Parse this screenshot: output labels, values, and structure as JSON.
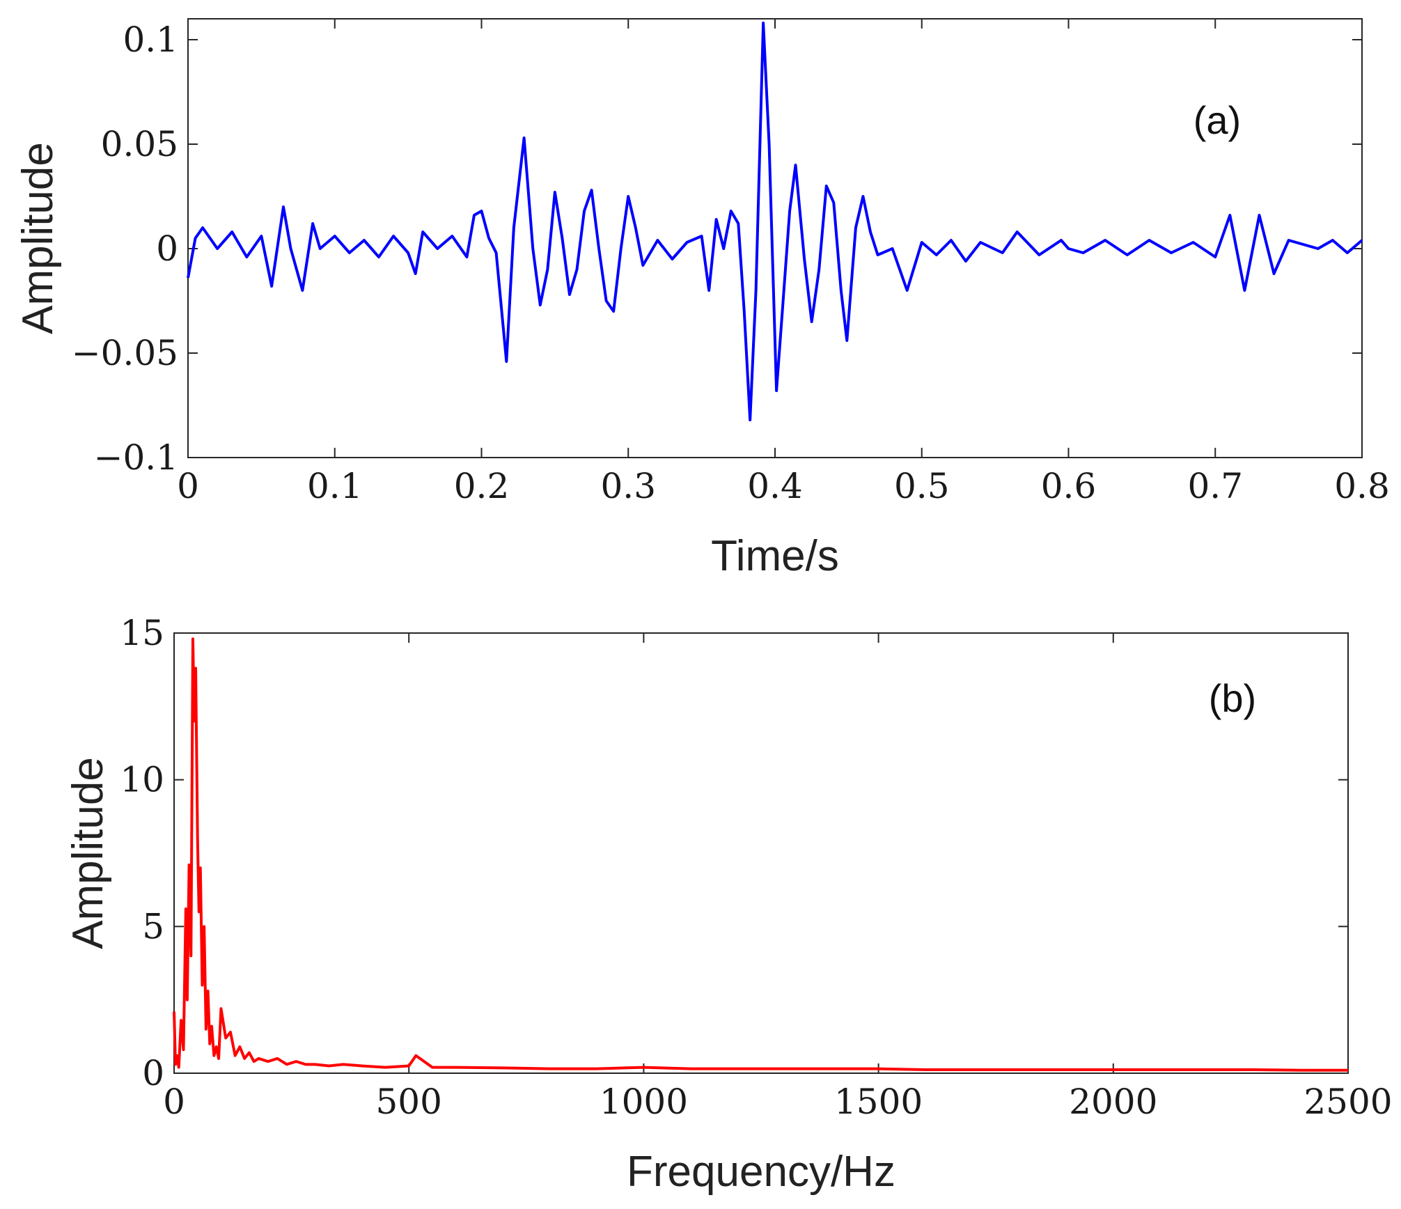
{
  "chart_data": [
    {
      "id": "a",
      "type": "line",
      "panel_label": "(a)",
      "xlabel": "Time/s",
      "ylabel": "Amplitude",
      "xlim": [
        0,
        0.8
      ],
      "ylim": [
        -0.1,
        0.11
      ],
      "xticks": [
        0,
        0.1,
        0.2,
        0.3,
        0.4,
        0.5,
        0.6,
        0.7,
        0.8
      ],
      "xtick_labels": [
        "0",
        "0.1",
        "0.2",
        "0.3",
        "0.4",
        "0.5",
        "0.6",
        "0.7",
        "0.8"
      ],
      "yticks": [
        -0.1,
        -0.05,
        0,
        0.05,
        0.1
      ],
      "ytick_labels": [
        "−0.1",
        "−0.05",
        "0",
        "0.05",
        "0.1"
      ],
      "grid": false,
      "color": "#0000ff",
      "series": [
        {
          "x": [
            0,
            0.005,
            0.01,
            0.02,
            0.03,
            0.04,
            0.05,
            0.057,
            0.065,
            0.07,
            0.078,
            0.085,
            0.09,
            0.1,
            0.11,
            0.12,
            0.13,
            0.14,
            0.15,
            0.155,
            0.16,
            0.17,
            0.18,
            0.19,
            0.195,
            0.2,
            0.205,
            0.21,
            0.217,
            0.222,
            0.229,
            0.235,
            0.24,
            0.245,
            0.25,
            0.255,
            0.26,
            0.265,
            0.27,
            0.275,
            0.28,
            0.285,
            0.29,
            0.295,
            0.3,
            0.305,
            0.31,
            0.32,
            0.33,
            0.34,
            0.35,
            0.355,
            0.36,
            0.365,
            0.37,
            0.375,
            0.379,
            0.383,
            0.387,
            0.392,
            0.396,
            0.401,
            0.405,
            0.41,
            0.414,
            0.42,
            0.425,
            0.43,
            0.435,
            0.44,
            0.445,
            0.449,
            0.455,
            0.46,
            0.465,
            0.47,
            0.48,
            0.49,
            0.5,
            0.51,
            0.52,
            0.53,
            0.54,
            0.555,
            0.565,
            0.58,
            0.595,
            0.6,
            0.61,
            0.625,
            0.64,
            0.655,
            0.67,
            0.685,
            0.7,
            0.71,
            0.72,
            0.73,
            0.74,
            0.75,
            0.76,
            0.77,
            0.78,
            0.79,
            0.8
          ],
          "y": [
            -0.014,
            0.005,
            0.01,
            0.0,
            0.008,
            -0.004,
            0.006,
            -0.018,
            0.02,
            0.0,
            -0.02,
            0.012,
            0.0,
            0.006,
            -0.002,
            0.004,
            -0.004,
            0.006,
            -0.002,
            -0.012,
            0.008,
            0.0,
            0.006,
            -0.004,
            0.016,
            0.018,
            0.005,
            -0.002,
            -0.054,
            0.01,
            0.053,
            0.0,
            -0.027,
            -0.01,
            0.027,
            0.005,
            -0.022,
            -0.01,
            0.018,
            0.028,
            0.0,
            -0.025,
            -0.03,
            0.0,
            0.025,
            0.01,
            -0.008,
            0.004,
            -0.005,
            0.003,
            0.006,
            -0.02,
            0.014,
            0.0,
            0.018,
            0.012,
            -0.03,
            -0.082,
            -0.02,
            0.108,
            0.05,
            -0.068,
            -0.03,
            0.018,
            0.04,
            -0.005,
            -0.035,
            -0.01,
            0.03,
            0.022,
            -0.02,
            -0.044,
            0.01,
            0.025,
            0.008,
            -0.003,
            0.0,
            -0.02,
            0.003,
            -0.003,
            0.004,
            -0.006,
            0.003,
            -0.002,
            0.008,
            -0.003,
            0.004,
            0.0,
            -0.002,
            0.004,
            -0.003,
            0.004,
            -0.002,
            0.003,
            -0.004,
            0.016,
            -0.02,
            0.016,
            -0.012,
            0.004,
            0.002,
            0.0,
            0.004,
            -0.002,
            0.004
          ]
        }
      ]
    },
    {
      "id": "b",
      "type": "line",
      "panel_label": "(b)",
      "xlabel": "Frequency/Hz",
      "ylabel": "Amplitude",
      "xlim": [
        0,
        2500
      ],
      "ylim": [
        0,
        15
      ],
      "xticks": [
        0,
        500,
        1000,
        1500,
        2000,
        2500
      ],
      "xtick_labels": [
        "0",
        "500",
        "1000",
        "1500",
        "2000",
        "2500"
      ],
      "yticks": [
        0,
        5,
        10,
        15
      ],
      "ytick_labels": [
        "0",
        "5",
        "10",
        "15"
      ],
      "grid": false,
      "color": "#ff0000",
      "series": [
        {
          "x": [
            0,
            3,
            6,
            10,
            15,
            20,
            25,
            28,
            32,
            36,
            40,
            43,
            46,
            50,
            53,
            56,
            60,
            64,
            68,
            72,
            76,
            80,
            85,
            90,
            95,
            100,
            110,
            120,
            130,
            140,
            150,
            160,
            170,
            180,
            200,
            220,
            240,
            260,
            280,
            300,
            330,
            360,
            400,
            450,
            500,
            515,
            550,
            600,
            700,
            800,
            900,
            1000,
            1100,
            1200,
            1300,
            1400,
            1500,
            1600,
            1700,
            1800,
            1900,
            2000,
            2100,
            2200,
            2300,
            2400,
            2500
          ],
          "y": [
            2.1,
            0.3,
            0.6,
            0.2,
            1.8,
            0.8,
            5.6,
            2.5,
            7.1,
            4.0,
            14.8,
            12.0,
            13.8,
            8.0,
            5.5,
            7.0,
            3.0,
            5.0,
            1.5,
            2.8,
            1.0,
            1.6,
            0.6,
            0.9,
            0.5,
            2.2,
            1.2,
            1.4,
            0.6,
            0.9,
            0.5,
            0.7,
            0.4,
            0.5,
            0.4,
            0.5,
            0.3,
            0.4,
            0.3,
            0.3,
            0.25,
            0.3,
            0.25,
            0.2,
            0.25,
            0.6,
            0.2,
            0.2,
            0.18,
            0.15,
            0.15,
            0.2,
            0.15,
            0.15,
            0.15,
            0.15,
            0.15,
            0.12,
            0.12,
            0.12,
            0.12,
            0.12,
            0.12,
            0.12,
            0.12,
            0.1,
            0.1
          ]
        }
      ]
    }
  ]
}
